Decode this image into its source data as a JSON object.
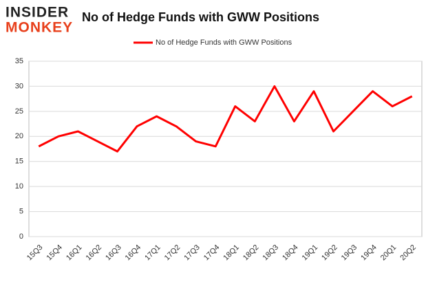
{
  "brand": {
    "top": "INSIDER",
    "bottom": "MONKEY"
  },
  "chart_data": {
    "type": "line",
    "title": "No of Hedge Funds with GWW Positions",
    "categories": [
      "15Q3",
      "15Q4",
      "16Q1",
      "16Q2",
      "16Q3",
      "16Q4",
      "17Q1",
      "17Q2",
      "17Q3",
      "17Q4",
      "18Q1",
      "18Q2",
      "18Q3",
      "18Q4",
      "19Q1",
      "19Q2",
      "19Q3",
      "19Q4",
      "20Q1",
      "20Q2"
    ],
    "series": [
      {
        "name": "No of Hedge Funds with GWW Positions",
        "color": "#ff0000",
        "values": [
          18,
          20,
          21,
          19,
          17,
          22,
          24,
          22,
          19,
          18,
          26,
          23,
          30,
          23,
          29,
          21,
          25,
          29,
          26,
          28
        ]
      }
    ],
    "ylim": [
      0,
      35
    ],
    "yticks": [
      0,
      5,
      10,
      15,
      20,
      25,
      30,
      35
    ],
    "grid": true,
    "legend": "top"
  }
}
